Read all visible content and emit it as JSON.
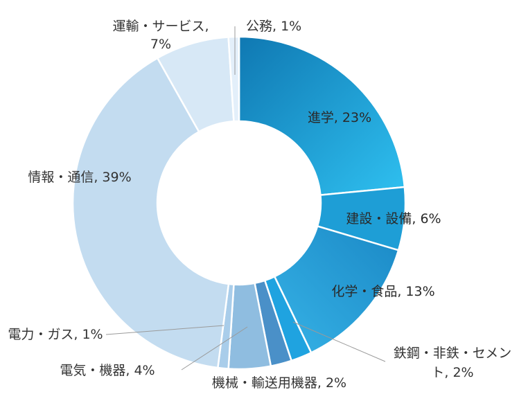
{
  "chart_data": {
    "type": "donut",
    "data_labels": true,
    "slices": [
      {
        "label": "進学",
        "value": 23,
        "display": "進学, 23%",
        "color": "#29b6e8"
      },
      {
        "label": "建設・設備",
        "value": 6,
        "display": "建設・設備, 6%",
        "color": "#1e9ed6"
      },
      {
        "label": "化学・食品",
        "value": 13,
        "display": "化学・食品, 13%",
        "color": "#2aa6dc"
      },
      {
        "label": "鉄鋼・非鉄・セメント",
        "value": 2,
        "display": "鉄鋼・非鉄・セメント, 2%",
        "color": "#1fa3e0"
      },
      {
        "label": "機械・輸送用機器",
        "value": 2,
        "display": "機械・輸送用機器, 2%",
        "color": "#4a90c8"
      },
      {
        "label": "電気・機器",
        "value": 4,
        "display": "電気・機器, 4%",
        "color": "#8fbde0"
      },
      {
        "label": "電力・ガス",
        "value": 1,
        "display": "電力・ガス, 1%",
        "color": "#a9cdea"
      },
      {
        "label": "情報・通信",
        "value": 39,
        "display": "情報・通信, 39%",
        "color": "#c3dcf0"
      },
      {
        "label": "運輸・サービス",
        "value": 7,
        "display": "運輸・サービス, 7%",
        "color": "#d7e8f6"
      },
      {
        "label": "公務",
        "value": 1,
        "display": "公務, 1%",
        "color": "#e3effa"
      }
    ]
  }
}
